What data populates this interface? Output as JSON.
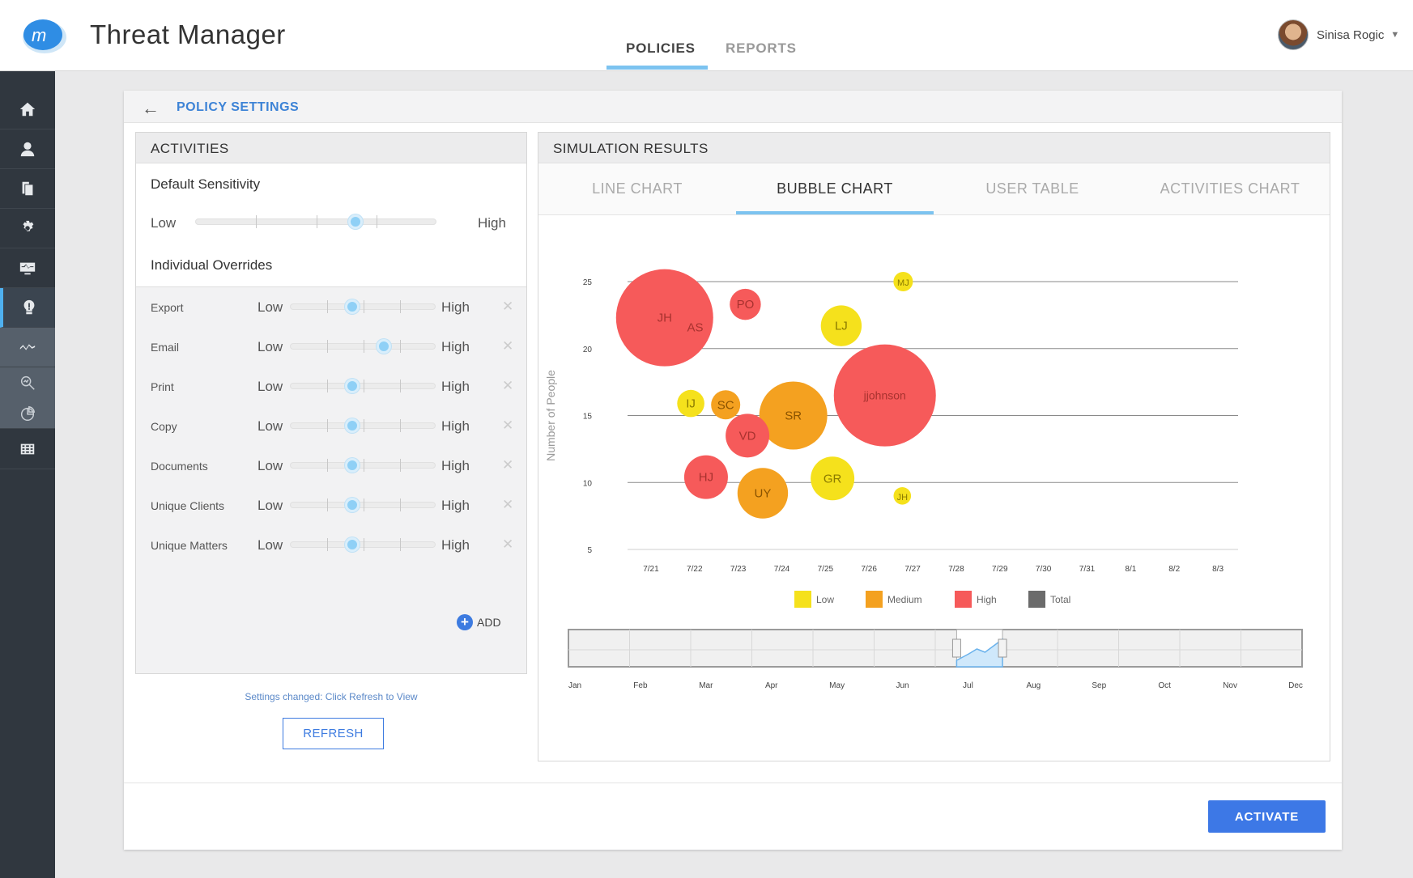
{
  "header": {
    "app_title": "Threat Manager",
    "tabs": [
      {
        "label": "POLICIES",
        "active": true
      },
      {
        "label": "REPORTS",
        "active": false
      }
    ],
    "user_name": "Sinisa Rogic"
  },
  "sidebar": {
    "items": [
      "home-icon",
      "user-icon",
      "documents-icon",
      "gear-icon",
      "monitor-icon",
      "alert-icon",
      "activity-icon",
      "search-analytics-icon",
      "pie-chart-icon",
      "grid-icon"
    ]
  },
  "policy": {
    "title": "POLICY SETTINGS"
  },
  "activities": {
    "heading": "ACTIVITIES",
    "default_sensitivity_label": "Default Sensitivity",
    "low": "Low",
    "high": "High",
    "default_level": 0.66,
    "overrides_title": "Individual Overrides",
    "overrides": [
      {
        "name": "Export",
        "level": 0.42
      },
      {
        "name": "Email",
        "level": 0.64
      },
      {
        "name": "Print",
        "level": 0.42
      },
      {
        "name": "Copy",
        "level": 0.42
      },
      {
        "name": "Documents",
        "level": 0.42
      },
      {
        "name": "Unique Clients",
        "level": 0.42
      },
      {
        "name": "Unique Matters",
        "level": 0.42
      }
    ],
    "add_label": "ADD",
    "changed_text": "Settings changed: Click Refresh to View",
    "refresh_label": "REFRESH"
  },
  "simulation": {
    "heading": "SIMULATION RESULTS",
    "tabs": [
      {
        "label": "LINE CHART",
        "active": false
      },
      {
        "label": "BUBBLE CHART",
        "active": true
      },
      {
        "label": "USER TABLE",
        "active": false
      },
      {
        "label": "ACTIVITIES CHART",
        "active": false
      }
    ]
  },
  "chart_data": {
    "type": "scatter",
    "ylabel": "Number of People",
    "ylim": [
      5,
      25
    ],
    "yticks": [
      5,
      10,
      15,
      20,
      25
    ],
    "x": [
      "7/21",
      "7/22",
      "7/23",
      "7/24",
      "7/25",
      "7/26",
      "7/27",
      "7/28",
      "7/29",
      "7/30",
      "7/31",
      "8/1",
      "8/2",
      "8/3"
    ],
    "colors": {
      "Low": "#f5e11c",
      "Medium": "#f4a120",
      "High": "#f65a5a",
      "Total": "#6b6b6b"
    },
    "legend": [
      "Low",
      "Medium",
      "High",
      "Total"
    ],
    "legend_position": "bottom",
    "bubbles": [
      {
        "label": "JH",
        "x": 7.35,
        "y": 22.3,
        "size": 100,
        "level": "High"
      },
      {
        "label": "AS",
        "x": 8.05,
        "y": 21.6,
        "size": 28,
        "level": "High"
      },
      {
        "label": "PO",
        "x": 9.2,
        "y": 23.3,
        "size": 32,
        "level": "High"
      },
      {
        "label": "LJ",
        "x": 11.4,
        "y": 21.7,
        "size": 42,
        "level": "Low"
      },
      {
        "label": "MJ",
        "x": 12.82,
        "y": 25.0,
        "size": 20,
        "level": "Low"
      },
      {
        "label": "IJ",
        "x": 7.95,
        "y": 15.9,
        "size": 28,
        "level": "Low"
      },
      {
        "label": "SC",
        "x": 8.75,
        "y": 15.8,
        "size": 30,
        "level": "Medium"
      },
      {
        "label": "SR",
        "x": 10.3,
        "y": 15.0,
        "size": 70,
        "level": "Medium"
      },
      {
        "label": "jjohnson",
        "x": 12.4,
        "y": 16.5,
        "size": 105,
        "level": "High"
      },
      {
        "label": "VD",
        "x": 9.25,
        "y": 13.5,
        "size": 45,
        "level": "High"
      },
      {
        "label": "HJ",
        "x": 8.3,
        "y": 10.4,
        "size": 45,
        "level": "High"
      },
      {
        "label": "UY",
        "x": 9.6,
        "y": 9.2,
        "size": 52,
        "level": "Medium"
      },
      {
        "label": "GR",
        "x": 11.2,
        "y": 10.3,
        "size": 45,
        "level": "Low"
      },
      {
        "label": "JH",
        "x": 12.8,
        "y": 9.0,
        "size": 18,
        "level": "Low"
      }
    ],
    "range_selector": {
      "months": [
        "Jan",
        "Feb",
        "Mar",
        "Apr",
        "May",
        "Jun",
        "Jul",
        "Aug",
        "Sep",
        "Oct",
        "Nov",
        "Dec"
      ],
      "selected_from": "Jul",
      "selected_to": "Aug"
    }
  },
  "footer": {
    "activate_label": "ACTIVATE"
  }
}
